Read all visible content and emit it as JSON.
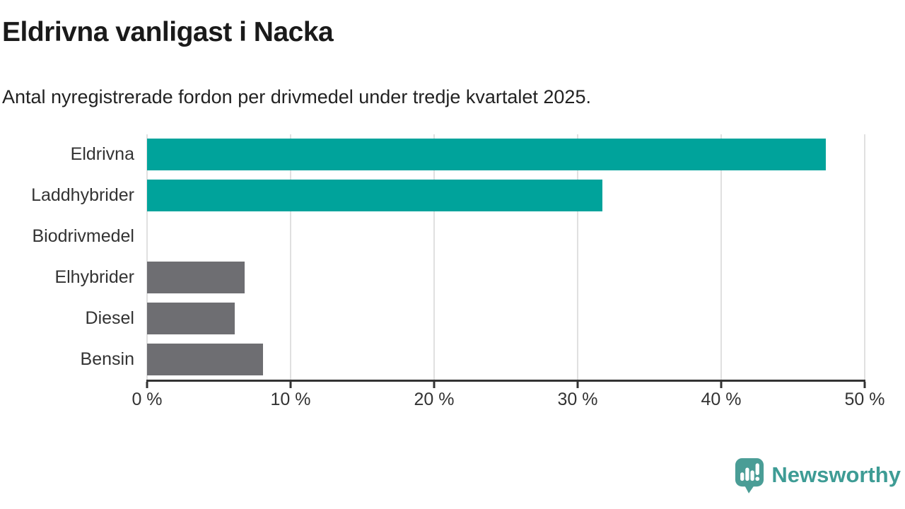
{
  "chart_data": {
    "type": "bar",
    "orientation": "horizontal",
    "title": "Eldrivna vanligast i Nacka",
    "subtitle": "Antal nyregistrerade fordon per drivmedel under tredje kvartalet 2025.",
    "categories": [
      "Eldrivna",
      "Laddhybrider",
      "Biodrivmedel",
      "Elhybrider",
      "Diesel",
      "Bensin"
    ],
    "values": [
      47.3,
      31.7,
      0,
      6.8,
      6.1,
      8.1
    ],
    "unit": "%",
    "xlabel": "",
    "ylabel": "",
    "xlim": [
      0,
      50
    ],
    "x_ticks": [
      {
        "value": 0,
        "label": "0 %"
      },
      {
        "value": 10,
        "label": "10 %"
      },
      {
        "value": 20,
        "label": "20 %"
      },
      {
        "value": 30,
        "label": "30 %"
      },
      {
        "value": 40,
        "label": "40 %"
      },
      {
        "value": 50,
        "label": "50 %"
      }
    ],
    "bar_colors": [
      "#00A39B",
      "#00A39B",
      "#00A39B",
      "#6E6E72",
      "#6E6E72",
      "#6E6E72"
    ],
    "grid": true,
    "legend": false
  },
  "colors": {
    "accent_teal": "#00A39B",
    "neutral_gray": "#6E6E72",
    "axis": "#333333",
    "gridline": "#E0E0E0",
    "title_text": "#1A1A1A",
    "logo_teal": "#3E9C95"
  },
  "footer": {
    "brand": "Newsworthy"
  }
}
